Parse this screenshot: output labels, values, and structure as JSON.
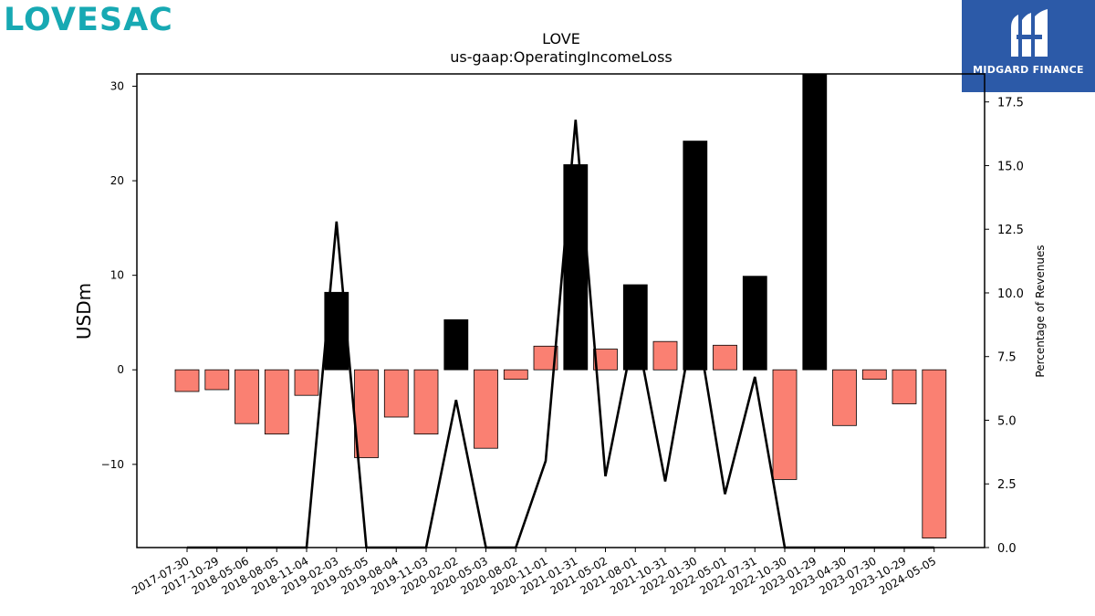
{
  "brand": {
    "name": "LOVESAC"
  },
  "partner": {
    "name": "MIDGARD FINANCE"
  },
  "chart_data": {
    "type": "bar",
    "title": "LOVE",
    "subtitle": "us-gaap:OperatingIncomeLoss",
    "ylabel": "USDm",
    "y2label": "Percentage of Revenues",
    "ylim": [
      -18.8,
      31.3
    ],
    "y2lim": [
      0,
      18.6
    ],
    "yticks": [
      -10,
      0,
      10,
      20,
      30
    ],
    "y2ticks": [
      "0.0",
      "2.5",
      "5.0",
      "7.5",
      "10.0",
      "12.5",
      "15.0",
      "17.5"
    ],
    "categories": [
      "2017-07-30",
      "2017-10-29",
      "2018-05-06",
      "2018-08-05",
      "2018-11-04",
      "2019-02-03",
      "2019-05-05",
      "2019-08-04",
      "2019-11-03",
      "2020-02-02",
      "2020-05-03",
      "2020-08-02",
      "2020-11-01",
      "2021-01-31",
      "2021-05-02",
      "2021-08-01",
      "2021-10-31",
      "2022-01-30",
      "2022-05-01",
      "2022-07-31",
      "2022-10-30",
      "2023-01-29",
      "2023-04-30",
      "2023-07-30",
      "2023-10-29",
      "2024-05-05"
    ],
    "series": [
      {
        "role": "operating_income_usdm",
        "values": [
          -2.3,
          -2.1,
          -5.7,
          -6.8,
          -2.7,
          8.2,
          -9.3,
          -5.0,
          -6.8,
          5.3,
          -8.3,
          -1.0,
          2.5,
          21.7,
          2.2,
          9.0,
          3.0,
          24.2,
          2.6,
          9.9,
          -11.6,
          31.3,
          -5.9,
          -1.0,
          -3.6,
          -17.8
        ],
        "colors": {
          "positive": "#000000",
          "negative": "#fa8072",
          "positive_small": "#fa8072"
        }
      },
      {
        "role": "percentage_of_revenues",
        "values": [
          0,
          0,
          0,
          0,
          0,
          12.8,
          0,
          0,
          0,
          5.8,
          0,
          0,
          3.4,
          16.8,
          2.8,
          8.7,
          2.6,
          9.2,
          2.1,
          6.7,
          0,
          0,
          0,
          0,
          0,
          0
        ],
        "color": "#000000"
      }
    ],
    "grid": false,
    "legend": "none"
  }
}
